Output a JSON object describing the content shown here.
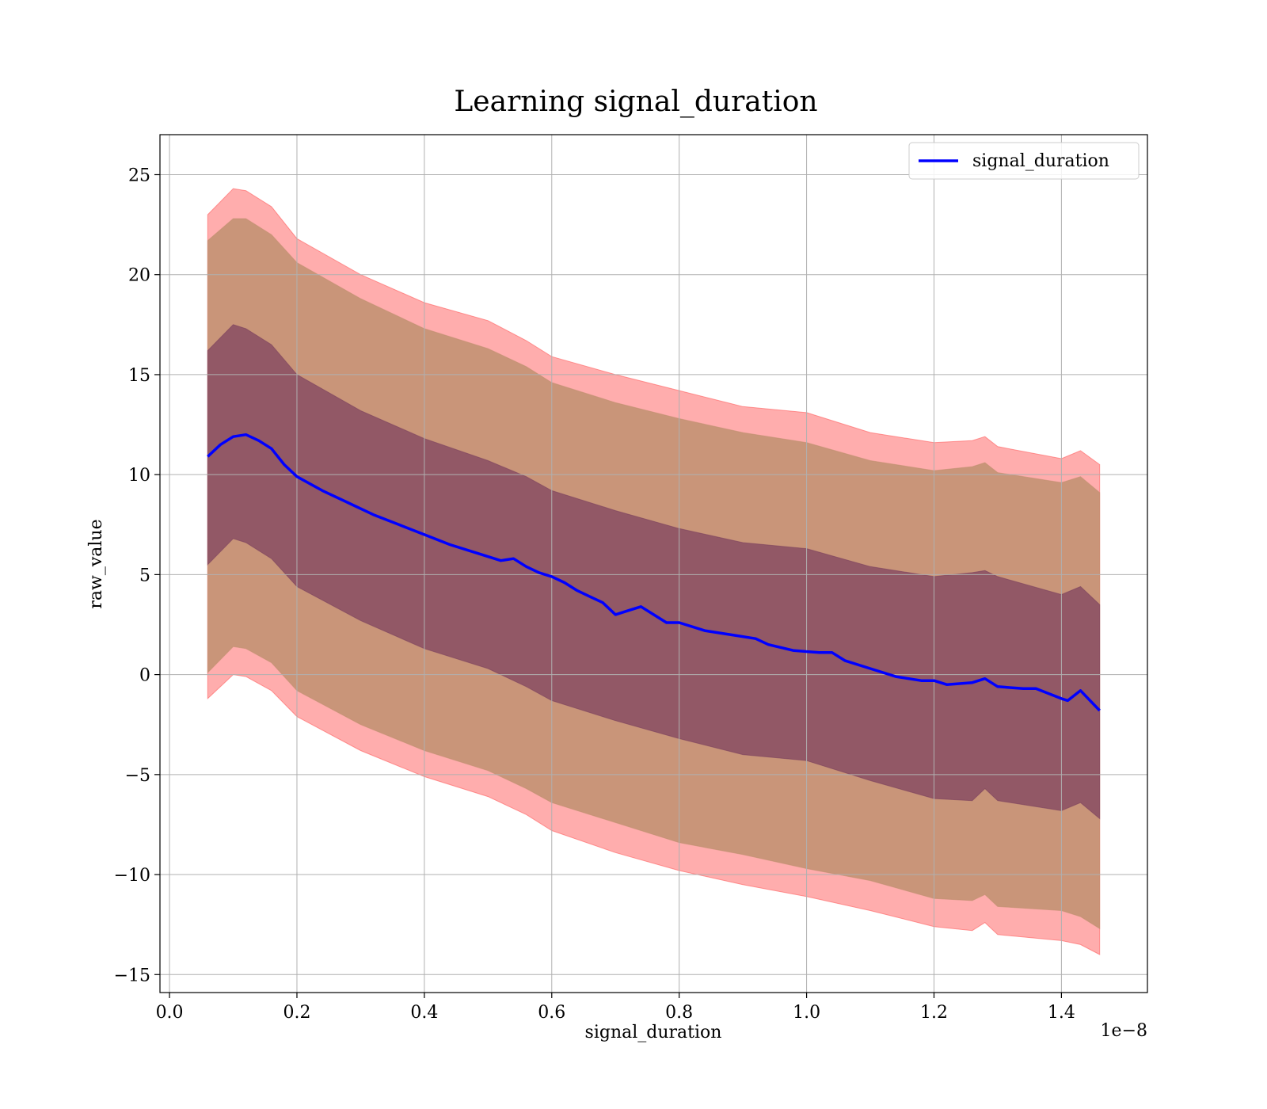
{
  "chart_data": {
    "type": "line",
    "title": "Learning signal_duration",
    "xlabel": "signal_duration",
    "ylabel": "raw_value",
    "x_offset_label": "1e−8",
    "xlim": [
      -0.015,
      1.535
    ],
    "ylim": [
      -15.9,
      27
    ],
    "x_ticks": [
      0.0,
      0.2,
      0.4,
      0.6,
      0.8,
      1.0,
      1.2,
      1.4
    ],
    "x_tick_labels": [
      "0.0",
      "0.2",
      "0.4",
      "0.6",
      "0.8",
      "1.0",
      "1.2",
      "1.4"
    ],
    "y_ticks": [
      -15,
      -10,
      -5,
      0,
      5,
      10,
      15,
      20,
      25
    ],
    "y_tick_labels": [
      "−15",
      "−10",
      "−5",
      "0",
      "5",
      "10",
      "15",
      "20",
      "25"
    ],
    "grid": true,
    "legend_position": "top-right",
    "series": [
      {
        "name": "signal_duration",
        "color": "#0000ff",
        "x": [
          0.06,
          0.08,
          0.1,
          0.12,
          0.14,
          0.16,
          0.18,
          0.2,
          0.24,
          0.28,
          0.32,
          0.36,
          0.4,
          0.44,
          0.48,
          0.52,
          0.54,
          0.56,
          0.58,
          0.6,
          0.62,
          0.64,
          0.66,
          0.68,
          0.7,
          0.72,
          0.74,
          0.76,
          0.78,
          0.8,
          0.84,
          0.88,
          0.92,
          0.94,
          0.98,
          1.02,
          1.04,
          1.06,
          1.1,
          1.14,
          1.18,
          1.2,
          1.22,
          1.26,
          1.28,
          1.3,
          1.34,
          1.36,
          1.4,
          1.41,
          1.43,
          1.46
        ],
        "y": [
          10.9,
          11.5,
          11.9,
          12.0,
          11.7,
          11.3,
          10.5,
          9.9,
          9.2,
          8.6,
          8.0,
          7.5,
          7.0,
          6.5,
          6.1,
          5.7,
          5.8,
          5.4,
          5.1,
          4.9,
          4.6,
          4.2,
          3.9,
          3.6,
          3.0,
          3.2,
          3.4,
          3.0,
          2.6,
          2.6,
          2.2,
          2.0,
          1.8,
          1.5,
          1.2,
          1.1,
          1.1,
          0.7,
          0.3,
          -0.1,
          -0.3,
          -0.3,
          -0.5,
          -0.4,
          -0.2,
          -0.6,
          -0.7,
          -0.7,
          -1.2,
          -1.3,
          -0.8,
          -1.8
        ]
      }
    ],
    "bands": [
      {
        "color": "#ff5c5c",
        "opacity": 0.5,
        "x": [
          0.06,
          0.1,
          0.12,
          0.16,
          0.2,
          0.3,
          0.4,
          0.5,
          0.56,
          0.6,
          0.7,
          0.8,
          0.9,
          1.0,
          1.1,
          1.2,
          1.26,
          1.28,
          1.3,
          1.4,
          1.43,
          1.46
        ],
        "upper": [
          23.0,
          24.3,
          24.2,
          23.4,
          21.8,
          20.0,
          18.6,
          17.7,
          16.7,
          15.9,
          15.0,
          14.2,
          13.4,
          13.1,
          12.1,
          11.6,
          11.7,
          11.9,
          11.4,
          10.8,
          11.2,
          10.5
        ],
        "lower": [
          -1.2,
          0.0,
          -0.1,
          -0.8,
          -2.1,
          -3.8,
          -5.1,
          -6.1,
          -7.0,
          -7.8,
          -8.9,
          -9.8,
          -10.5,
          -11.1,
          -11.8,
          -12.6,
          -12.8,
          -12.4,
          -13.0,
          -13.3,
          -13.5,
          -14.0
        ]
      },
      {
        "color": "#c09070",
        "opacity": 0.85,
        "x": [
          0.06,
          0.1,
          0.12,
          0.16,
          0.2,
          0.3,
          0.4,
          0.5,
          0.56,
          0.6,
          0.7,
          0.8,
          0.9,
          1.0,
          1.1,
          1.2,
          1.26,
          1.28,
          1.3,
          1.4,
          1.43,
          1.46
        ],
        "upper": [
          21.7,
          22.8,
          22.8,
          22.0,
          20.6,
          18.8,
          17.3,
          16.3,
          15.4,
          14.6,
          13.6,
          12.8,
          12.1,
          11.6,
          10.7,
          10.2,
          10.4,
          10.6,
          10.1,
          9.6,
          9.9,
          9.1
        ],
        "lower": [
          0.1,
          1.4,
          1.3,
          0.6,
          -0.8,
          -2.5,
          -3.8,
          -4.8,
          -5.7,
          -6.4,
          -7.4,
          -8.4,
          -9.0,
          -9.7,
          -10.3,
          -11.2,
          -11.3,
          -11.0,
          -11.6,
          -11.8,
          -12.1,
          -12.7
        ]
      },
      {
        "color": "#7a3f5e",
        "opacity": 0.7,
        "x": [
          0.06,
          0.1,
          0.12,
          0.16,
          0.2,
          0.3,
          0.4,
          0.5,
          0.56,
          0.6,
          0.7,
          0.8,
          0.9,
          1.0,
          1.1,
          1.2,
          1.26,
          1.28,
          1.3,
          1.4,
          1.43,
          1.46
        ],
        "upper": [
          16.2,
          17.5,
          17.3,
          16.5,
          15.0,
          13.2,
          11.8,
          10.7,
          9.9,
          9.2,
          8.2,
          7.3,
          6.6,
          6.3,
          5.4,
          4.9,
          5.1,
          5.2,
          4.9,
          4.0,
          4.4,
          3.5
        ],
        "lower": [
          5.5,
          6.8,
          6.6,
          5.8,
          4.4,
          2.7,
          1.3,
          0.3,
          -0.6,
          -1.3,
          -2.3,
          -3.2,
          -4.0,
          -4.3,
          -5.3,
          -6.2,
          -6.3,
          -5.7,
          -6.3,
          -6.8,
          -6.4,
          -7.2
        ]
      }
    ]
  }
}
